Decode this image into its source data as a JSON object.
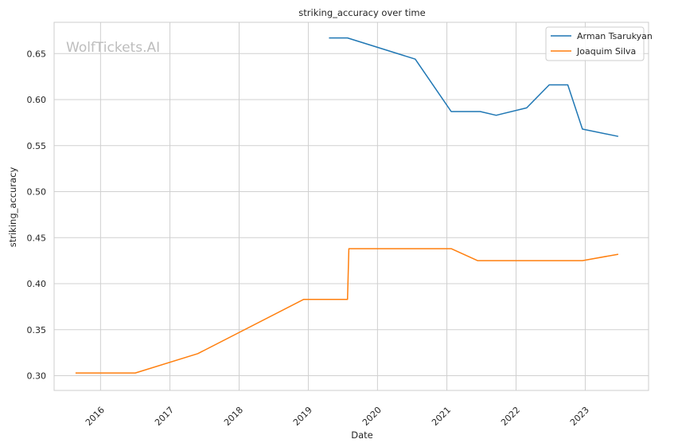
{
  "watermark": "WolfTickets.AI",
  "chart_data": {
    "type": "line",
    "title": "striking_accuracy over time",
    "xlabel": "Date",
    "ylabel": "striking_accuracy",
    "x_ticks": [
      "2016",
      "2017",
      "2018",
      "2019",
      "2020",
      "2021",
      "2022",
      "2023"
    ],
    "y_ticks": [
      "0.30",
      "0.35",
      "0.40",
      "0.45",
      "0.50",
      "0.55",
      "0.60",
      "0.65"
    ],
    "xlim": [
      "2015-05-01",
      "2023-12-01"
    ],
    "ylim": [
      0.284,
      0.684
    ],
    "grid": true,
    "legend_position": "top-right",
    "series": [
      {
        "name": "Arman Tsarukyan",
        "color": "#1f77b4",
        "x": [
          "2019-04-20",
          "2019-07-27",
          "2020-07-18",
          "2021-01-24",
          "2021-06-26",
          "2021-09-18",
          "2022-02-26",
          "2022-06-25",
          "2022-10-01",
          "2022-12-17",
          "2023-06-24"
        ],
        "y": [
          0.667,
          0.667,
          0.644,
          0.587,
          0.587,
          0.583,
          0.591,
          0.616,
          0.616,
          0.568,
          0.56
        ]
      },
      {
        "name": "Joaquim Silva",
        "color": "#ff7f0e",
        "x": [
          "2015-08-22",
          "2016-07-02",
          "2017-05-28",
          "2018-12-08",
          "2019-07-27",
          "2019-08-03",
          "2021-01-24",
          "2021-06-12",
          "2022-06-25",
          "2022-12-17",
          "2023-06-24"
        ],
        "y": [
          0.303,
          0.303,
          0.324,
          0.383,
          0.383,
          0.438,
          0.438,
          0.425,
          0.425,
          0.425,
          0.432
        ]
      }
    ]
  }
}
